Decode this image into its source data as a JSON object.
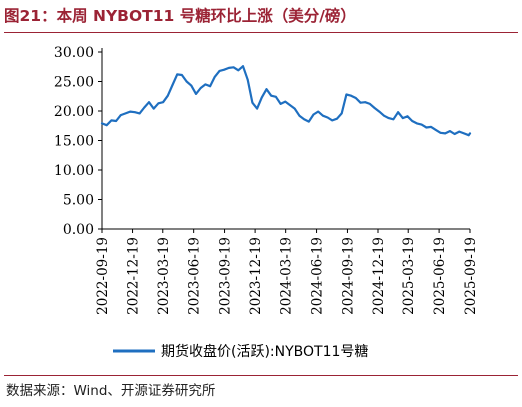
{
  "figure": {
    "title": "图21：本周 NYBOT11 号糖环比上涨（美分/磅）",
    "source": "数据来源：Wind、开源证券研究所"
  },
  "colors": {
    "line": "#1F6FC0",
    "accent": "#9B2335",
    "axis": "#000000"
  },
  "chart_data": {
    "type": "line",
    "title": "",
    "xlabel": "",
    "ylabel": "",
    "ylim": [
      0,
      30
    ],
    "yticks": [
      "0.00",
      "5.00",
      "10.00",
      "15.00",
      "20.00",
      "25.00",
      "30.00"
    ],
    "xticks": [
      "2022-09-19",
      "2022-12-19",
      "2023-03-19",
      "2023-06-19",
      "2023-09-19",
      "2023-12-19",
      "2024-03-19",
      "2024-06-19",
      "2024-09-19",
      "2024-12-19",
      "2025-03-19",
      "2025-06-19",
      "2025-09-19"
    ],
    "grid": false,
    "legend_position": "bottom",
    "series": [
      {
        "name": "期货收盘价(活跃):NYBOT11号糖",
        "x": [
          "2022-09-19",
          "2022-10-03",
          "2022-10-17",
          "2022-10-31",
          "2022-11-14",
          "2022-11-28",
          "2022-12-12",
          "2022-12-26",
          "2023-01-09",
          "2023-01-23",
          "2023-02-06",
          "2023-02-20",
          "2023-03-06",
          "2023-03-20",
          "2023-04-03",
          "2023-04-17",
          "2023-05-01",
          "2023-05-15",
          "2023-05-29",
          "2023-06-12",
          "2023-06-26",
          "2023-07-10",
          "2023-07-24",
          "2023-08-07",
          "2023-08-21",
          "2023-09-04",
          "2023-09-18",
          "2023-10-02",
          "2023-10-16",
          "2023-10-30",
          "2023-11-13",
          "2023-11-27",
          "2023-12-11",
          "2023-12-25",
          "2024-01-08",
          "2024-01-22",
          "2024-02-05",
          "2024-02-19",
          "2024-03-04",
          "2024-03-18",
          "2024-04-01",
          "2024-04-15",
          "2024-04-29",
          "2024-05-13",
          "2024-05-27",
          "2024-06-10",
          "2024-06-24",
          "2024-07-08",
          "2024-07-22",
          "2024-08-05",
          "2024-08-19",
          "2024-09-02",
          "2024-09-16",
          "2024-09-30",
          "2024-10-14",
          "2024-10-28",
          "2024-11-11",
          "2024-11-25",
          "2024-12-09",
          "2024-12-23",
          "2025-01-06",
          "2025-01-20",
          "2025-02-03",
          "2025-02-17",
          "2025-03-03",
          "2025-03-17",
          "2025-03-31",
          "2025-04-14",
          "2025-04-28",
          "2025-05-12",
          "2025-05-26",
          "2025-06-09",
          "2025-06-23",
          "2025-07-07",
          "2025-07-21",
          "2025-08-04",
          "2025-08-18",
          "2025-09-01",
          "2025-09-15",
          "2025-09-19"
        ],
        "values": [
          17.9,
          17.6,
          18.4,
          18.3,
          19.3,
          19.6,
          19.9,
          19.8,
          19.6,
          20.6,
          21.5,
          20.4,
          21.3,
          21.5,
          22.6,
          24.4,
          26.2,
          26.1,
          25.0,
          24.3,
          22.9,
          23.9,
          24.5,
          24.2,
          25.8,
          26.8,
          27.0,
          27.3,
          27.4,
          26.9,
          27.6,
          25.3,
          21.4,
          20.4,
          22.3,
          23.7,
          22.6,
          22.4,
          21.2,
          21.6,
          21.0,
          20.4,
          19.2,
          18.6,
          18.2,
          19.4,
          19.9,
          19.2,
          18.9,
          18.4,
          18.7,
          19.6,
          22.8,
          22.6,
          22.2,
          21.4,
          21.5,
          21.2,
          20.5,
          19.9,
          19.2,
          18.8,
          18.6,
          19.8,
          18.8,
          19.1,
          18.3,
          17.9,
          17.7,
          17.2,
          17.3,
          16.8,
          16.3,
          16.2,
          16.6,
          16.1,
          16.5,
          16.2,
          15.9,
          16.2
        ]
      }
    ]
  }
}
